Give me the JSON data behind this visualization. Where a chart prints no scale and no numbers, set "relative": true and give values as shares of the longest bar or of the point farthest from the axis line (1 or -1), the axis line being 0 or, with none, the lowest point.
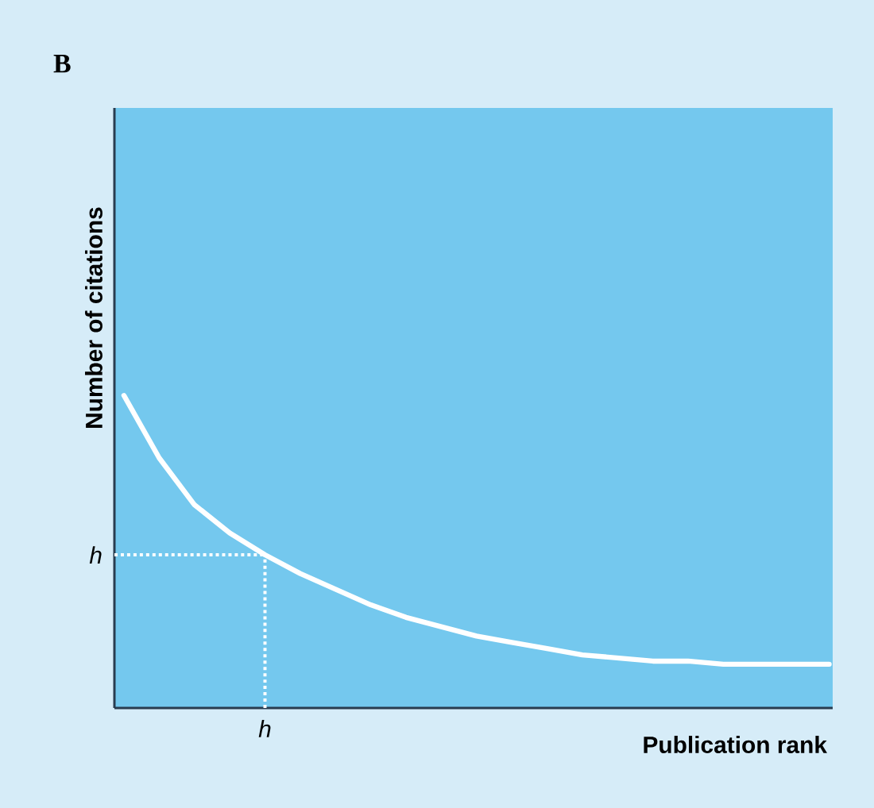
{
  "chart_data": {
    "type": "line",
    "title": "B",
    "xlabel": "Publication rank",
    "ylabel": "Number of citations",
    "relative": true,
    "categories": [
      null,
      null,
      null,
      null,
      null,
      null,
      null,
      null,
      null,
      null,
      null,
      null,
      null,
      null,
      null,
      null,
      null,
      null,
      null,
      null,
      null
    ],
    "series": [
      {
        "color": "#ffffff",
        "values": [
          1,
          0.8,
          0.65,
          0.56,
          0.49,
          0.43,
          0.38,
          0.33,
          0.29,
          0.26,
          0.23,
          0.21,
          0.19,
          0.17,
          0.16,
          0.15,
          0.15,
          0.14,
          0.14,
          0.14,
          0.14
        ]
      }
    ],
    "ref_lines": [
      {
        "axis": "y",
        "value": 0.49,
        "label": "h",
        "color": "#ffffff",
        "line_style": "dotted"
      }
    ],
    "annotations": [
      "h"
    ],
    "marker": "none",
    "line_style": "solid"
  }
}
